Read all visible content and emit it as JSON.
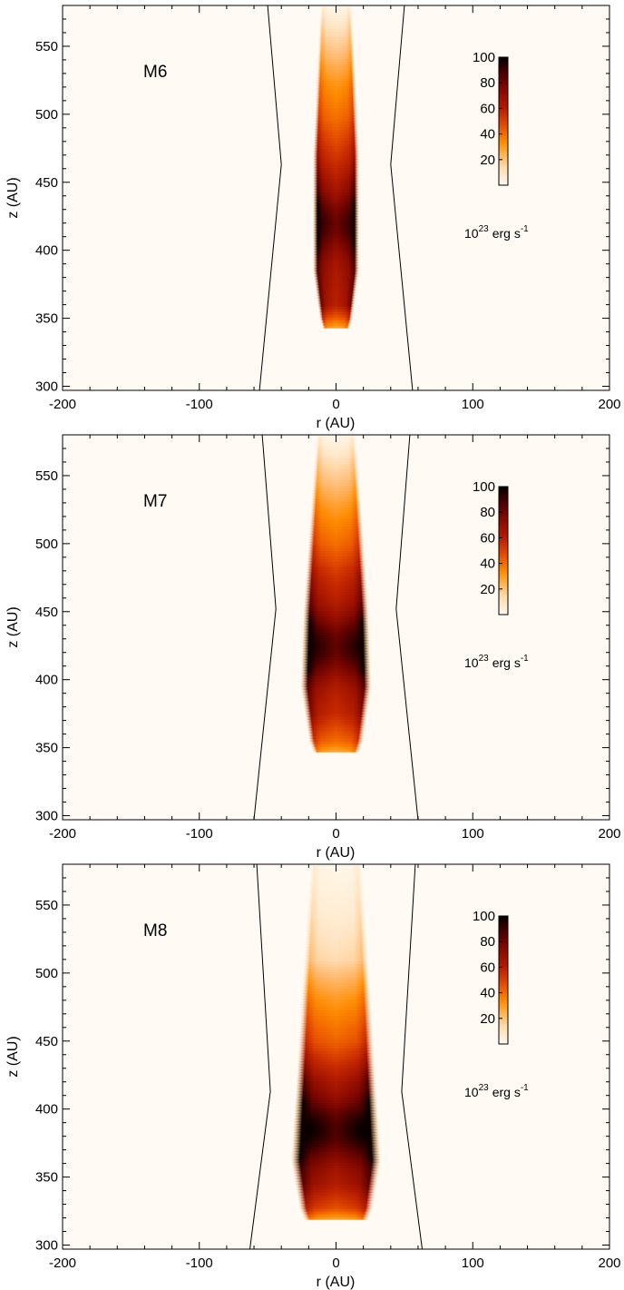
{
  "chart_data": [
    {
      "type": "heatmap",
      "label": "M6",
      "xlabel": "r (AU)",
      "ylabel": "z (AU)",
      "xlim": [
        -200,
        200
      ],
      "ylim": [
        297,
        580
      ],
      "xticks": [
        -200,
        -100,
        0,
        100,
        200
      ],
      "xtick_labels": [
        "-200",
        "-100",
        "0",
        "100",
        "200"
      ],
      "yticks": [
        300,
        350,
        400,
        450,
        500,
        550
      ],
      "ytick_labels": [
        "300",
        "350",
        "400",
        "450",
        "500",
        "550"
      ],
      "colorbar": {
        "ticks": [
          20,
          40,
          60,
          80,
          100
        ],
        "tick_labels": [
          "20",
          "40",
          "60",
          "80",
          "100"
        ],
        "range": [
          0,
          100
        ],
        "unit_base": "10",
        "unit_exp": "23",
        "unit_text": "erg s",
        "unit_exp2": "-1"
      },
      "boundary": {
        "bottom_r": 56,
        "kink_r": 40,
        "kink_z": 463,
        "top_r": 50
      },
      "jet": {
        "z_base": 343,
        "z_top": 578,
        "cap_z": 350,
        "shoulder_z": 385,
        "profile": [
          {
            "z": 343,
            "r": 10
          },
          {
            "z": 350,
            "r": 12
          },
          {
            "z": 385,
            "r": 17
          },
          {
            "z": 470,
            "r": 17
          },
          {
            "z": 578,
            "r": 12
          }
        ],
        "levels": [
          {
            "z": 343,
            "v": 25
          },
          {
            "z": 350,
            "v": 45
          },
          {
            "z": 360,
            "v": 68
          },
          {
            "z": 400,
            "v": 75
          },
          {
            "z": 420,
            "v": 78
          },
          {
            "z": 450,
            "v": 70
          },
          {
            "z": 475,
            "v": 55
          },
          {
            "z": 500,
            "v": 40
          },
          {
            "z": 520,
            "v": 32
          },
          {
            "z": 545,
            "v": 18
          },
          {
            "z": 578,
            "v": 3
          }
        ],
        "peak": {
          "z": 420,
          "v": 92
        }
      }
    },
    {
      "type": "heatmap",
      "label": "M7",
      "xlabel": "r (AU)",
      "ylabel": "z (AU)",
      "xlim": [
        -200,
        200
      ],
      "ylim": [
        297,
        580
      ],
      "xticks": [
        -200,
        -100,
        0,
        100,
        200
      ],
      "xtick_labels": [
        "-200",
        "-100",
        "0",
        "100",
        "200"
      ],
      "yticks": [
        300,
        350,
        400,
        450,
        500,
        550
      ],
      "ytick_labels": [
        "300",
        "350",
        "400",
        "450",
        "500",
        "550"
      ],
      "colorbar": {
        "ticks": [
          20,
          40,
          60,
          80,
          100
        ],
        "tick_labels": [
          "20",
          "40",
          "60",
          "80",
          "100"
        ],
        "range": [
          0,
          100
        ],
        "unit_base": "10",
        "unit_exp": "23",
        "unit_text": "erg s",
        "unit_exp2": "-1"
      },
      "boundary": {
        "bottom_r": 60,
        "kink_r": 44,
        "kink_z": 452,
        "top_r": 54
      },
      "jet": {
        "z_base": 347,
        "z_top": 578,
        "cap_z": 355,
        "shoulder_z": 395,
        "profile": [
          {
            "z": 347,
            "r": 17
          },
          {
            "z": 355,
            "r": 20
          },
          {
            "z": 395,
            "r": 26
          },
          {
            "z": 450,
            "r": 24
          },
          {
            "z": 578,
            "r": 15
          }
        ],
        "levels": [
          {
            "z": 347,
            "v": 25
          },
          {
            "z": 355,
            "v": 42
          },
          {
            "z": 375,
            "v": 62
          },
          {
            "z": 400,
            "v": 72
          },
          {
            "z": 425,
            "v": 82
          },
          {
            "z": 450,
            "v": 72
          },
          {
            "z": 475,
            "v": 60
          },
          {
            "z": 500,
            "v": 42
          },
          {
            "z": 520,
            "v": 32
          },
          {
            "z": 545,
            "v": 18
          },
          {
            "z": 578,
            "v": 3
          }
        ],
        "peak": {
          "z": 425,
          "v": 95
        }
      }
    },
    {
      "type": "heatmap",
      "label": "M8",
      "xlabel": "r (AU)",
      "ylabel": "z (AU)",
      "xlim": [
        -200,
        200
      ],
      "ylim": [
        297,
        580
      ],
      "xticks": [
        -200,
        -100,
        0,
        100,
        200
      ],
      "xtick_labels": [
        "-200",
        "-100",
        "0",
        "100",
        "200"
      ],
      "yticks": [
        300,
        350,
        400,
        450,
        500,
        550
      ],
      "ytick_labels": [
        "300",
        "350",
        "400",
        "450",
        "500",
        "550"
      ],
      "colorbar": {
        "ticks": [
          20,
          40,
          60,
          80,
          100
        ],
        "tick_labels": [
          "20",
          "40",
          "60",
          "80",
          "100"
        ],
        "range": [
          0,
          100
        ],
        "unit_base": "10",
        "unit_exp": "23",
        "unit_text": "erg s",
        "unit_exp2": "-1"
      },
      "boundary": {
        "bottom_r": 63,
        "kink_r": 48,
        "kink_z": 413,
        "top_r": 58
      },
      "jet": {
        "z_base": 319,
        "z_top": 578,
        "cap_z": 327,
        "shoulder_z": 362,
        "profile": [
          {
            "z": 319,
            "r": 24
          },
          {
            "z": 327,
            "r": 27
          },
          {
            "z": 362,
            "r": 33
          },
          {
            "z": 440,
            "r": 28
          },
          {
            "z": 578,
            "r": 20
          }
        ],
        "levels": [
          {
            "z": 319,
            "v": 25
          },
          {
            "z": 327,
            "v": 50
          },
          {
            "z": 345,
            "v": 70
          },
          {
            "z": 385,
            "v": 85
          },
          {
            "z": 420,
            "v": 72
          },
          {
            "z": 450,
            "v": 45
          },
          {
            "z": 480,
            "v": 30
          },
          {
            "z": 510,
            "v": 12
          },
          {
            "z": 545,
            "v": 6
          },
          {
            "z": 578,
            "v": 2
          }
        ],
        "peak": {
          "z": 385,
          "v": 100
        }
      }
    }
  ]
}
